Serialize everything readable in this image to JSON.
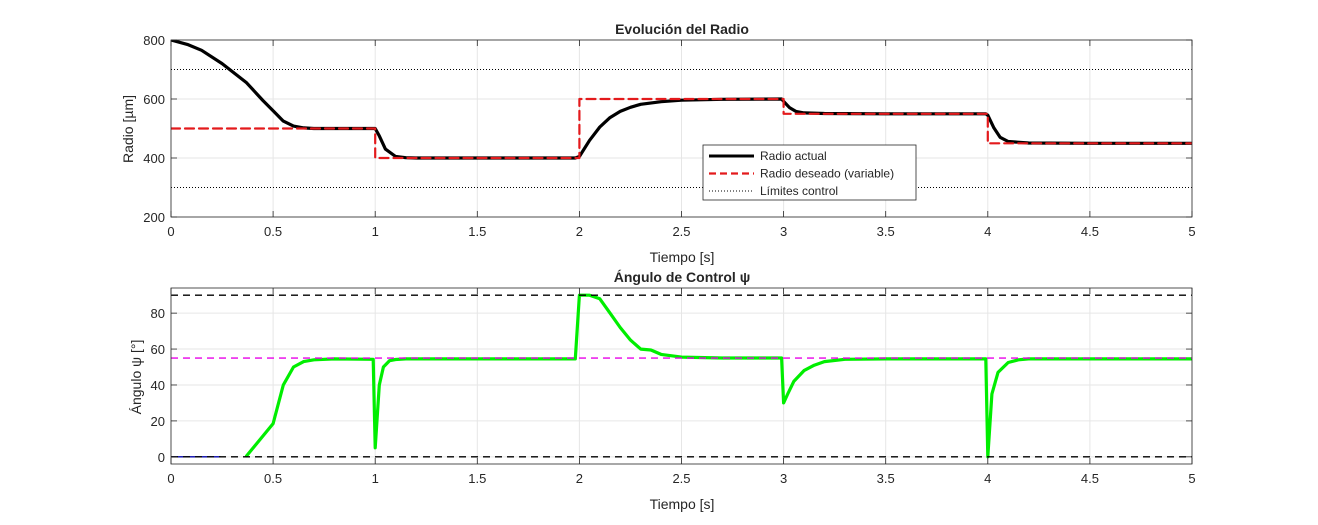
{
  "chart_data": [
    {
      "type": "line",
      "title": "Evolución del Radio",
      "xlabel": "Tiempo [s]",
      "ylabel": "Radio [µm]",
      "xlim": [
        0,
        5
      ],
      "ylim": [
        200,
        800
      ],
      "xticks": [
        0,
        0.5,
        1,
        1.5,
        2,
        2.5,
        3,
        3.5,
        4,
        4.5,
        5
      ],
      "xtick_labels": [
        "0",
        "0.5",
        "1",
        "1.5",
        "2",
        "2.5",
        "3",
        "3.5",
        "4",
        "4.5",
        "5"
      ],
      "yticks": [
        200,
        400,
        600,
        800
      ],
      "ytick_labels": [
        "200",
        "400",
        "600",
        "800"
      ],
      "grid": true,
      "legend_position": "center-right",
      "series": [
        {
          "name": "Radio actual",
          "color": "#000000",
          "style": "solid",
          "x": [
            0,
            0.08,
            0.15,
            0.25,
            0.37,
            0.45,
            0.5,
            0.55,
            0.6,
            0.65,
            0.7,
            0.8,
            0.9,
            1.0,
            1.02,
            1.05,
            1.1,
            1.15,
            1.2,
            1.5,
            1.98,
            2.0,
            2.05,
            2.1,
            2.15,
            2.2,
            2.25,
            2.3,
            2.4,
            2.5,
            2.7,
            2.99,
            3.0,
            3.03,
            3.06,
            3.1,
            3.2,
            3.5,
            3.99,
            4.0,
            4.03,
            4.06,
            4.1,
            4.2,
            4.5,
            5.0
          ],
          "y": [
            800,
            785,
            765,
            720,
            655,
            595,
            560,
            525,
            508,
            502,
            500,
            500,
            500,
            500,
            475,
            430,
            405,
            401,
            400,
            400,
            400,
            405,
            460,
            505,
            537,
            558,
            572,
            582,
            591,
            596,
            599,
            600,
            592,
            570,
            558,
            553,
            551,
            550,
            550,
            545,
            502,
            470,
            456,
            451,
            450,
            450
          ]
        },
        {
          "name": "Radio deseado (variable)",
          "color": "#e31a1c",
          "style": "dashed",
          "x": [
            0,
            1,
            1,
            2,
            2,
            3,
            3,
            4,
            4,
            5
          ],
          "y": [
            500,
            500,
            400,
            400,
            600,
            600,
            550,
            550,
            450,
            450
          ]
        },
        {
          "name": "Límites control",
          "color": "#000000",
          "style": "dotted",
          "y_constant": [
            700,
            300
          ]
        }
      ]
    },
    {
      "type": "line",
      "title": "Ángulo de Control ψ",
      "xlabel": "Tiempo [s]",
      "ylabel": "Ángulo ψ [°]",
      "xlim": [
        0,
        5
      ],
      "ylim": [
        -4,
        94
      ],
      "xticks": [
        0,
        0.5,
        1,
        1.5,
        2,
        2.5,
        3,
        3.5,
        4,
        4.5,
        5
      ],
      "xtick_labels": [
        "0",
        "0.5",
        "1",
        "1.5",
        "2",
        "2.5",
        "3",
        "3.5",
        "4",
        "4.5",
        "5"
      ],
      "yticks": [
        0,
        20,
        40,
        60,
        80
      ],
      "ytick_labels": [
        "0",
        "20",
        "40",
        "60",
        "80"
      ],
      "grid": true,
      "series": [
        {
          "color": "#00ee00",
          "style": "solid",
          "x": [
            0.37,
            0.5,
            0.55,
            0.6,
            0.65,
            0.7,
            0.8,
            0.99,
            1.0,
            1.02,
            1.04,
            1.07,
            1.1,
            1.15,
            1.2,
            1.4,
            1.6,
            1.98,
            2.0,
            2.05,
            2.1,
            2.15,
            2.2,
            2.25,
            2.3,
            2.35,
            2.4,
            2.5,
            2.7,
            2.99,
            3.0,
            3.02,
            3.05,
            3.1,
            3.15,
            3.2,
            3.3,
            3.5,
            3.99,
            4.0,
            4.02,
            4.05,
            4.1,
            4.15,
            4.2,
            4.5,
            5.0
          ],
          "y": [
            0.5,
            18.5,
            40,
            50,
            53,
            54,
            54.5,
            54.3,
            5,
            40,
            50,
            53.5,
            54.2,
            54.5,
            54.5,
            54.5,
            54.5,
            54.5,
            90,
            90,
            88,
            80,
            72,
            65,
            60,
            59.5,
            57,
            55.5,
            55,
            55,
            30,
            35,
            42,
            48,
            51,
            53,
            54.3,
            54.5,
            54.5,
            0,
            35,
            47,
            52.5,
            54,
            54.5,
            54.5,
            54.5
          ]
        },
        {
          "color": "#0000aa",
          "style": "solid",
          "x": [
            0,
            0.24
          ],
          "y": [
            0,
            0
          ]
        },
        {
          "color": "#000000",
          "style": "dashed",
          "y_constant": [
            90,
            0
          ]
        },
        {
          "color": "#e800e8",
          "style": "dashed",
          "y_constant": [
            55
          ]
        }
      ]
    }
  ]
}
